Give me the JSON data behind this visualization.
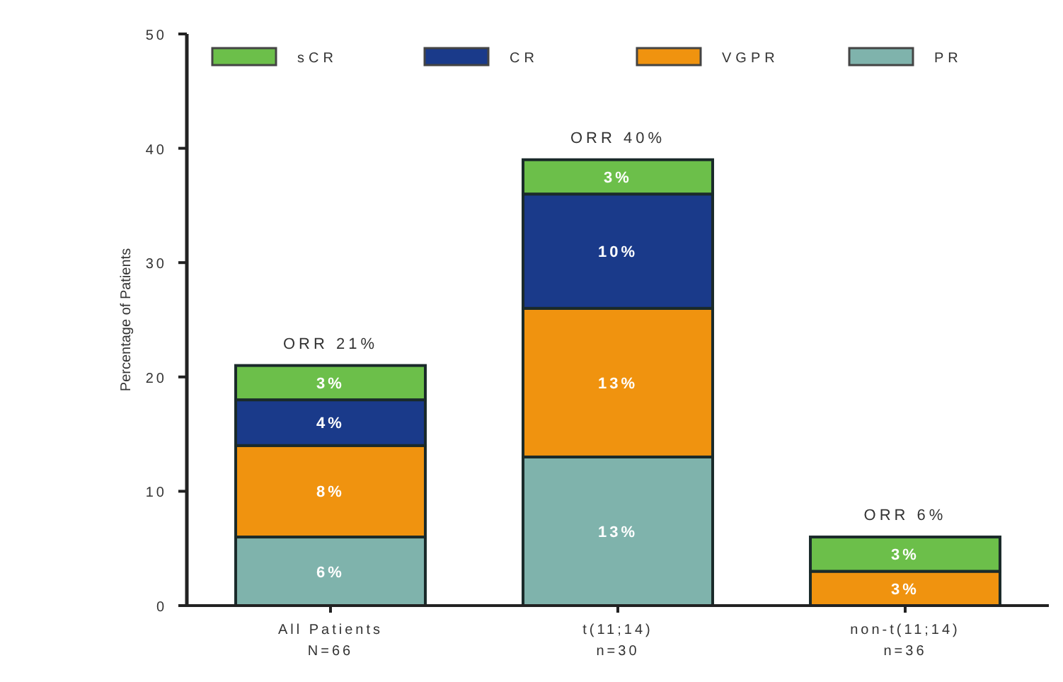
{
  "chart_data": {
    "type": "bar",
    "stacked": true,
    "ylabel": "Percentage of Patients",
    "categories": [
      "All Patients\nN=66",
      "t(11;14)\nn=30",
      "non-t(11;14)\nn=36"
    ],
    "series": [
      {
        "name": "PR",
        "color": "#7fb3ac",
        "values": [
          6,
          13,
          null
        ],
        "value_labels": [
          "6%",
          "13%",
          null
        ]
      },
      {
        "name": "VGPR",
        "color": "#f0930f",
        "values": [
          8,
          13,
          3
        ],
        "value_labels": [
          "8%",
          "13%",
          "3%"
        ]
      },
      {
        "name": "CR",
        "color": "#1a3a8a",
        "values": [
          4,
          10,
          null
        ],
        "value_labels": [
          "4%",
          "10%",
          null
        ]
      },
      {
        "name": "sCR",
        "color": "#6cbf4a",
        "values": [
          3,
          3,
          3
        ],
        "value_labels": [
          "3%",
          "3%",
          "3%"
        ]
      }
    ],
    "totals": [
      "ORR 21%",
      "ORR 40%",
      "ORR 6%"
    ],
    "ylim": [
      0,
      50
    ],
    "yticks": [
      0,
      10,
      20,
      30,
      40,
      50
    ],
    "grid": false,
    "legend": "top"
  }
}
